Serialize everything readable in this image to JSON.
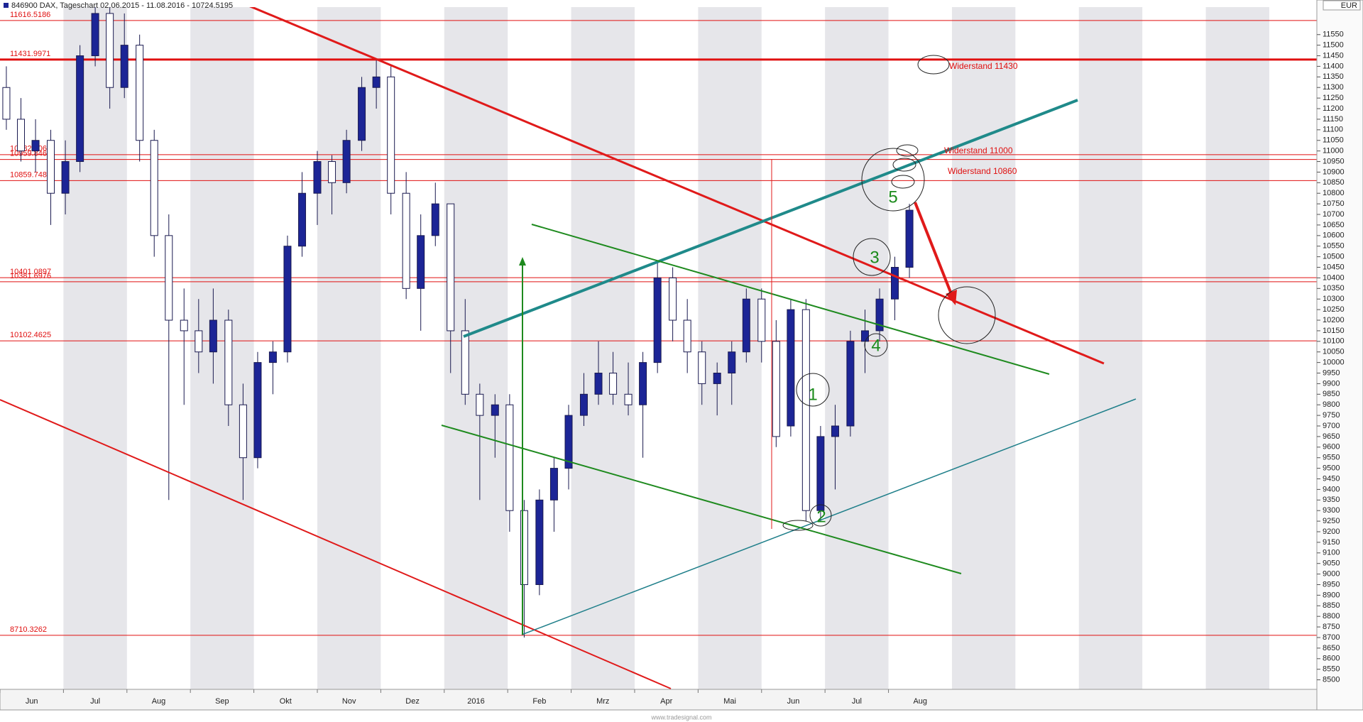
{
  "chart_data": {
    "type": "candlestick",
    "title": "846900  DAX, Tageschart  02.06.2015 - 11.08.2016 - 10724.5195",
    "currency": "EUR",
    "credit": "www.tradesignal.com",
    "categories": [
      "Jun",
      "Jul",
      "Aug",
      "Sep",
      "Okt",
      "Nov",
      "Dez",
      "2016",
      "Feb",
      "Mrz",
      "Apr",
      "Mai",
      "Jun",
      "Jul",
      "Aug"
    ],
    "xlim": [
      0,
      20.75
    ],
    "x": [
      0.1,
      0.33,
      0.56,
      0.8,
      1.03,
      1.26,
      1.5,
      1.73,
      1.96,
      2.2,
      2.43,
      2.66,
      2.9,
      3.13,
      3.36,
      3.6,
      3.83,
      4.06,
      4.3,
      4.53,
      4.76,
      5.0,
      5.23,
      5.46,
      5.7,
      5.93,
      6.16,
      6.4,
      6.63,
      6.86,
      7.1,
      7.33,
      7.56,
      7.8,
      8.03,
      8.26,
      8.5,
      8.73,
      8.96,
      9.2,
      9.43,
      9.66,
      9.9,
      10.13,
      10.36,
      10.6,
      10.83,
      11.06,
      11.3,
      11.53,
      11.76,
      12.0,
      12.23,
      12.46,
      12.7,
      12.93,
      13.16,
      13.4,
      13.63,
      13.86,
      14.1,
      14.33
    ],
    "open": [
      11300,
      11150,
      11000,
      11050,
      10800,
      10950,
      11450,
      11650,
      11300,
      11500,
      11050,
      10600,
      10200,
      10150,
      10050,
      10200,
      9800,
      9550,
      10000,
      10050,
      10550,
      10800,
      10950,
      10850,
      11050,
      11300,
      11350,
      10800,
      10350,
      10600,
      10750,
      10150,
      9850,
      9750,
      9800,
      9300,
      8950,
      9350,
      9500,
      9750,
      9850,
      9950,
      9850,
      9800,
      10000,
      10400,
      10200,
      10050,
      9900,
      9950,
      10050,
      10300,
      10100,
      9700,
      10250,
      9300,
      9650,
      9700,
      10100,
      10150,
      10300,
      10450
    ],
    "high": [
      11400,
      11250,
      11150,
      11100,
      11050,
      11500,
      11700,
      11700,
      11650,
      11550,
      11100,
      10700,
      10350,
      10300,
      10350,
      10250,
      9900,
      10050,
      10100,
      10600,
      10900,
      11000,
      10980,
      11100,
      11350,
      11430,
      11400,
      10900,
      10700,
      10850,
      10750,
      10300,
      9900,
      9850,
      9850,
      9350,
      9400,
      9550,
      9800,
      9950,
      10100,
      10050,
      10000,
      10050,
      10480,
      10450,
      10300,
      10100,
      10000,
      10100,
      10350,
      10350,
      10200,
      10300,
      10300,
      9700,
      9800,
      10150,
      10250,
      10350,
      10500,
      10750
    ],
    "low": [
      11100,
      10950,
      10900,
      10650,
      10700,
      10900,
      11400,
      11200,
      11250,
      10950,
      10500,
      9350,
      9800,
      9950,
      9900,
      9700,
      9350,
      9500,
      9850,
      10000,
      10500,
      10650,
      10700,
      10800,
      11000,
      11200,
      10700,
      10300,
      10150,
      10550,
      9950,
      9800,
      9350,
      9550,
      9200,
      8700,
      8900,
      9200,
      9400,
      9700,
      9800,
      9800,
      9750,
      9550,
      9950,
      10100,
      9950,
      9800,
      9750,
      9800,
      10000,
      10000,
      9600,
      9650,
      9250,
      9250,
      9400,
      9650,
      9950,
      10100,
      10200,
      10400
    ],
    "close": [
      11150,
      11000,
      11050,
      10800,
      10950,
      11450,
      11650,
      11300,
      11500,
      11050,
      10600,
      10200,
      10150,
      10050,
      10200,
      9800,
      9550,
      10000,
      10050,
      10550,
      10800,
      10950,
      10850,
      11050,
      11300,
      11350,
      10800,
      10350,
      10600,
      10750,
      10150,
      9850,
      9750,
      9800,
      9300,
      8950,
      9350,
      9500,
      9750,
      9850,
      9950,
      9850,
      9800,
      10000,
      10400,
      10200,
      10050,
      9900,
      9950,
      10050,
      10300,
      10100,
      9650,
      10250,
      9300,
      9650,
      9700,
      10100,
      10150,
      10300,
      10450,
      10720
    ],
    "up_color": "#1c2596",
    "down_color": "#ffffff",
    "ylim": [
      8455,
      11680
    ],
    "yticks": [
      8500,
      8550,
      8600,
      8650,
      8700,
      8750,
      8800,
      8850,
      8900,
      8950,
      9000,
      9050,
      9100,
      9150,
      9200,
      9250,
      9300,
      9350,
      9400,
      9450,
      9500,
      9550,
      9600,
      9650,
      9700,
      9750,
      9800,
      9850,
      9900,
      9950,
      10000,
      10050,
      10100,
      10150,
      10200,
      10250,
      10300,
      10350,
      10400,
      10450,
      10500,
      10550,
      10600,
      10650,
      10700,
      10750,
      10800,
      10850,
      10900,
      10950,
      11000,
      11050,
      11100,
      11150,
      11200,
      11250,
      11300,
      11350,
      11400,
      11450,
      11500,
      11550
    ],
    "hlines": [
      {
        "value": 11616.5186
      },
      {
        "value": 11431.9971,
        "bold": true
      },
      {
        "value": 10982.5061
      },
      {
        "value": 10959.8462
      },
      {
        "value": 10859.748
      },
      {
        "value": 10401.0897
      },
      {
        "value": 10381.6976
      },
      {
        "value": 10102.4625
      },
      {
        "value": 8710.3262
      }
    ],
    "annotations": [
      "Widerstand 11430",
      "Widerstand 11000",
      "Widerstand 10860"
    ],
    "waves": [
      "1",
      "2",
      "3",
      "4",
      "5"
    ]
  }
}
